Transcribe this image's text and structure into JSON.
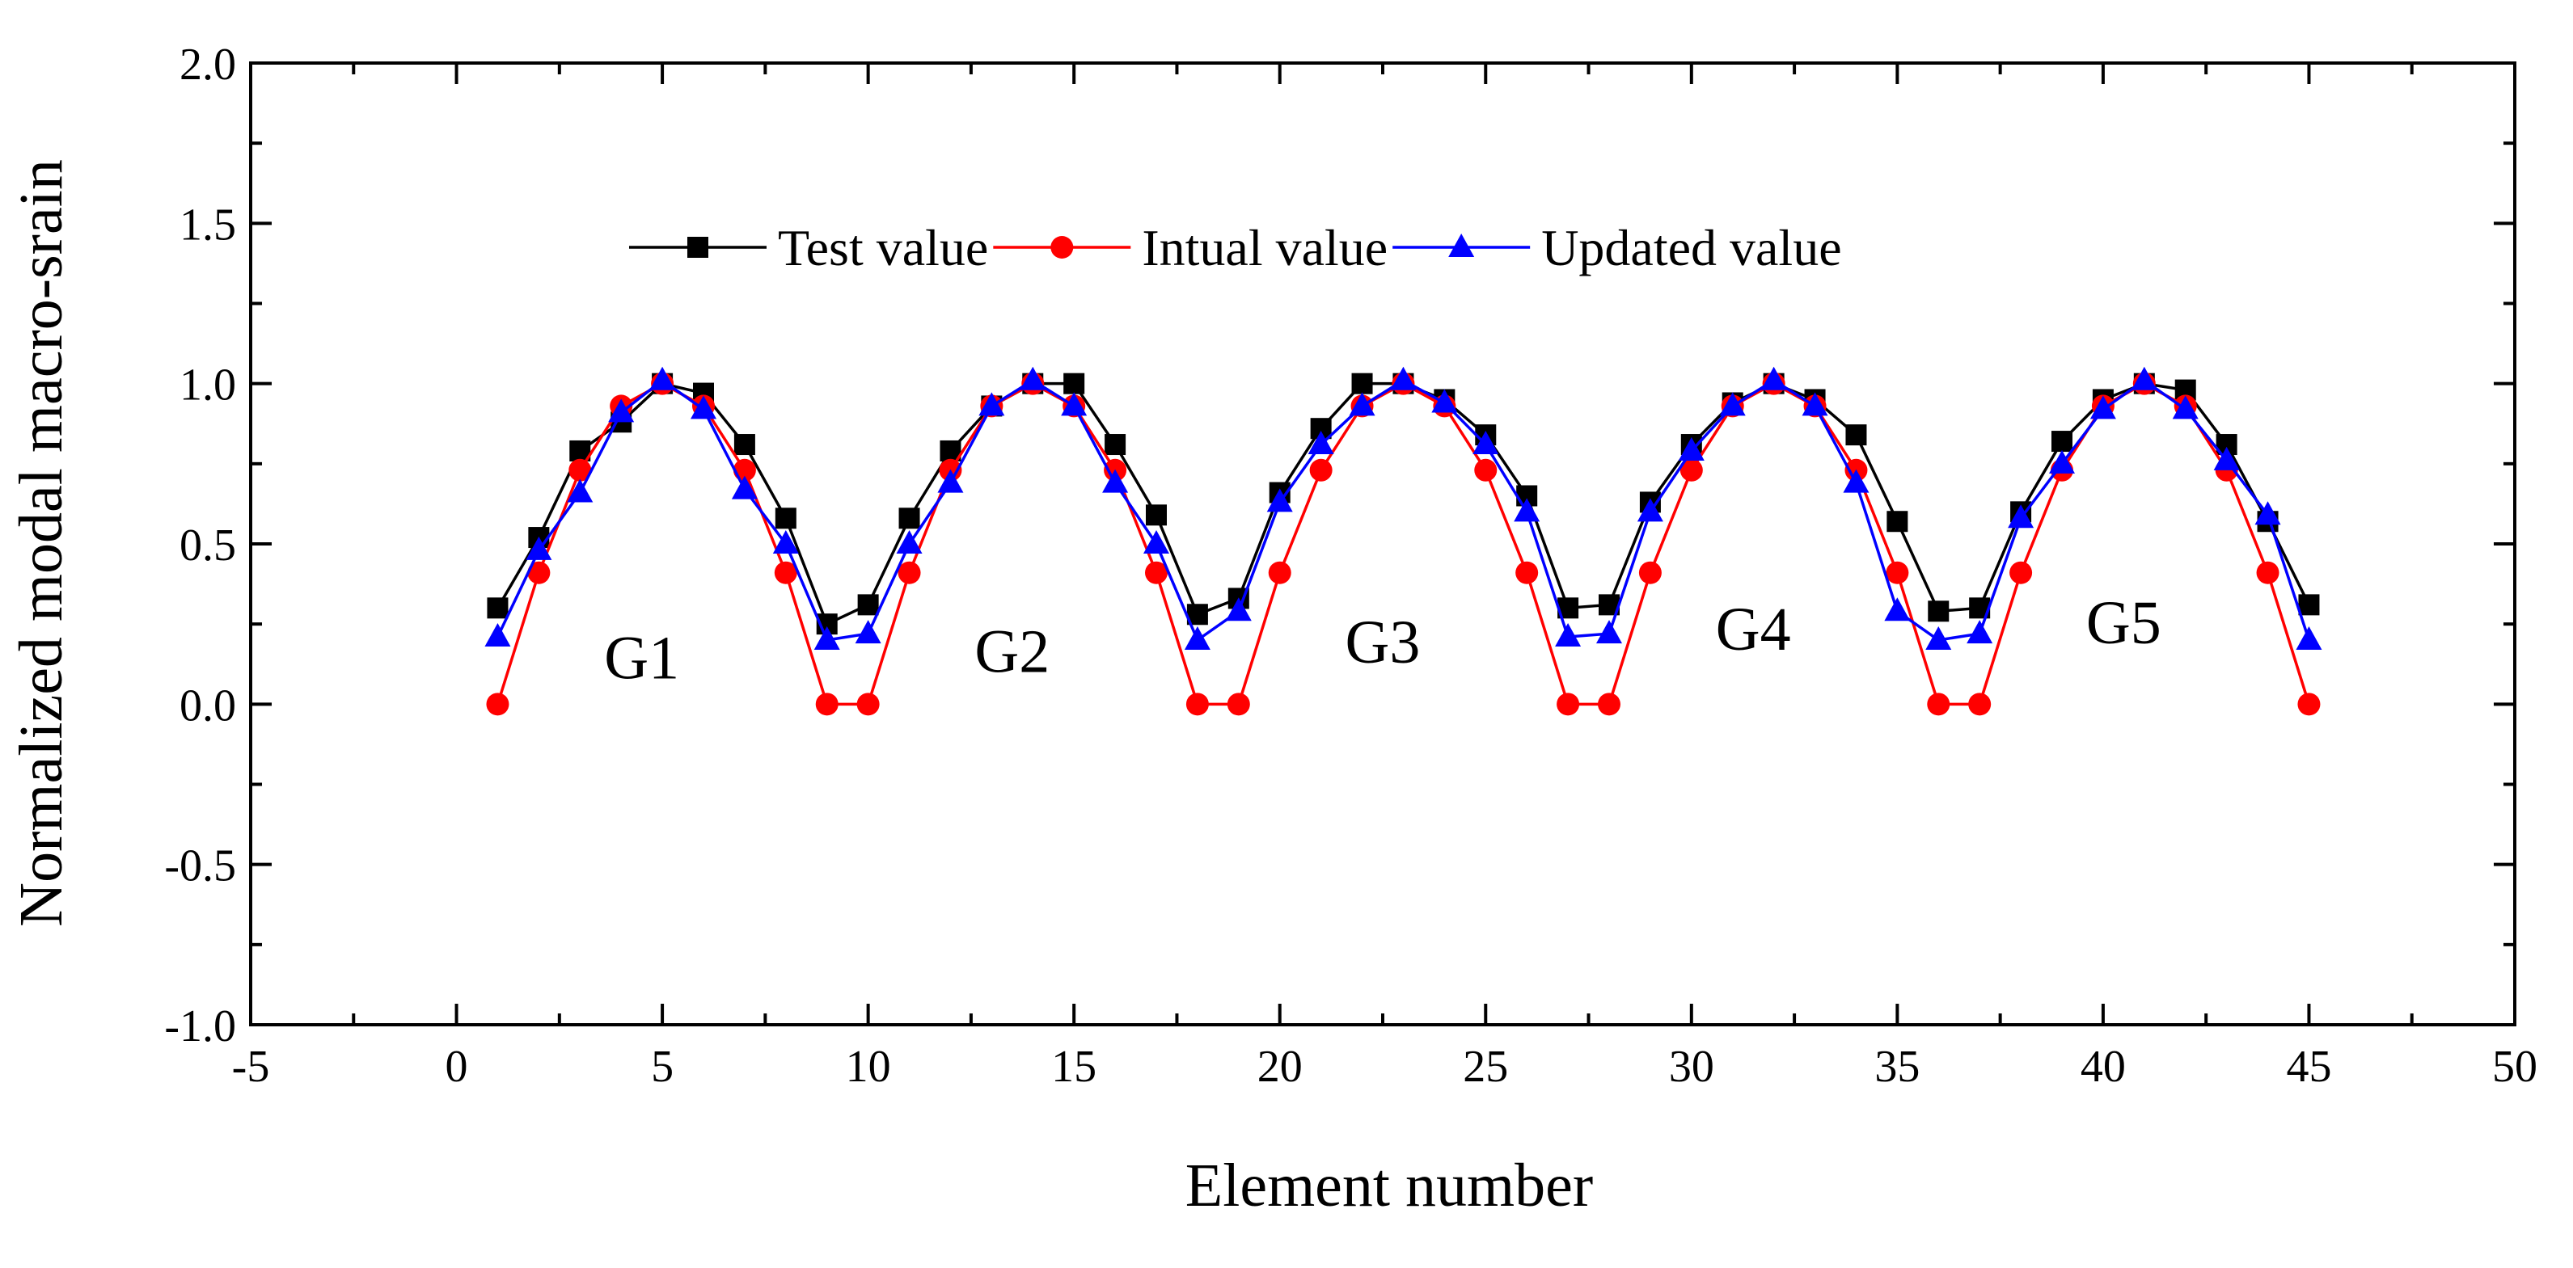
{
  "chart_data": {
    "type": "line",
    "title": "",
    "xlabel": "Element number",
    "ylabel": "Normalized modal macro-srain",
    "xlim": [
      -5,
      50
    ],
    "ylim": [
      -1.0,
      2.0
    ],
    "x_major_ticks": [
      -5,
      0,
      5,
      10,
      15,
      20,
      25,
      30,
      35,
      40,
      45,
      50
    ],
    "x_tick_labels": [
      "-5",
      "0",
      "5",
      "10",
      "15",
      "20",
      "25",
      "30",
      "35",
      "40",
      "45",
      "50"
    ],
    "y_major_ticks": [
      -1.0,
      -0.5,
      0.0,
      0.5,
      1.0,
      1.5,
      2.0
    ],
    "y_tick_labels": [
      "-1.0",
      "-0.5",
      "0.0",
      "0.5",
      "1.0",
      "1.5",
      "2.0"
    ],
    "grid": false,
    "legend_position": "top-center",
    "x": [
      1,
      2,
      3,
      4,
      5,
      6,
      7,
      8,
      9,
      10,
      11,
      12,
      13,
      14,
      15,
      16,
      17,
      18,
      19,
      20,
      21,
      22,
      23,
      24,
      25,
      26,
      27,
      28,
      29,
      30,
      31,
      32,
      33,
      34,
      35,
      36,
      37,
      38,
      39,
      40,
      41,
      42,
      43,
      44,
      45
    ],
    "series": [
      {
        "name": "Test value",
        "color": "#000000",
        "marker": "square",
        "values": [
          0.3,
          0.52,
          0.79,
          0.88,
          1.0,
          0.97,
          0.81,
          0.58,
          0.25,
          0.31,
          0.58,
          0.79,
          0.93,
          1.0,
          1.0,
          0.81,
          0.59,
          0.28,
          0.33,
          0.66,
          0.86,
          1.0,
          1.0,
          0.95,
          0.84,
          0.65,
          0.3,
          0.31,
          0.63,
          0.81,
          0.94,
          1.0,
          0.95,
          0.84,
          0.57,
          0.29,
          0.3,
          0.6,
          0.82,
          0.95,
          1.0,
          0.98,
          0.81,
          0.57,
          0.31
        ]
      },
      {
        "name": "Intual value",
        "color": "#ff0000",
        "marker": "circle",
        "values": [
          0.0,
          0.41,
          0.73,
          0.93,
          1.0,
          0.93,
          0.73,
          0.41,
          0.0,
          0.0,
          0.41,
          0.73,
          0.93,
          1.0,
          0.93,
          0.73,
          0.41,
          0.0,
          0.0,
          0.41,
          0.73,
          0.93,
          1.0,
          0.93,
          0.73,
          0.41,
          0.0,
          0.0,
          0.41,
          0.73,
          0.93,
          1.0,
          0.93,
          0.73,
          0.41,
          0.0,
          0.0,
          0.41,
          0.73,
          0.93,
          1.0,
          0.93,
          0.73,
          0.41,
          0.0
        ]
      },
      {
        "name": "Updated value",
        "color": "#0000ff",
        "marker": "triangle",
        "values": [
          0.21,
          0.48,
          0.66,
          0.91,
          1.01,
          0.92,
          0.67,
          0.5,
          0.2,
          0.22,
          0.5,
          0.69,
          0.93,
          1.01,
          0.93,
          0.69,
          0.5,
          0.2,
          0.29,
          0.63,
          0.81,
          0.93,
          1.01,
          0.94,
          0.81,
          0.6,
          0.21,
          0.22,
          0.6,
          0.79,
          0.93,
          1.01,
          0.93,
          0.69,
          0.29,
          0.2,
          0.22,
          0.58,
          0.75,
          0.92,
          1.01,
          0.92,
          0.76,
          0.59,
          0.2
        ]
      }
    ],
    "annotations": [
      {
        "text": "G1",
        "x": 4.5,
        "y": 0.08
      },
      {
        "text": "G2",
        "x": 13.5,
        "y": 0.1
      },
      {
        "text": "G3",
        "x": 22.5,
        "y": 0.13
      },
      {
        "text": "G4",
        "x": 31.5,
        "y": 0.17
      },
      {
        "text": "G5",
        "x": 40.5,
        "y": 0.19
      }
    ]
  }
}
